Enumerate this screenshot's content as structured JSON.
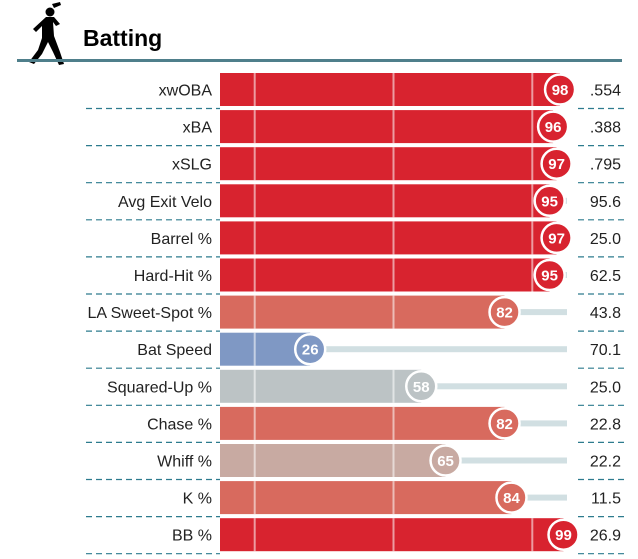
{
  "header": {
    "title": "Batting",
    "icon": "batter-silhouette-icon"
  },
  "chart_data": {
    "type": "bar",
    "orientation": "horizontal",
    "title": "Batting",
    "xlim": [
      0,
      100
    ],
    "grid": true,
    "categories": [
      "xwOBA",
      "xBA",
      "xSLG",
      "Avg Exit Velo",
      "Barrel %",
      "Hard-Hit %",
      "LA Sweet-Spot %",
      "Bat Speed",
      "Squared-Up %",
      "Chase %",
      "Whiff %",
      "K %",
      "BB %"
    ],
    "percentiles": [
      98,
      96,
      97,
      95,
      97,
      95,
      82,
      26,
      58,
      82,
      65,
      84,
      99
    ],
    "stat_values": [
      ".554",
      ".388",
      ".795",
      "95.6",
      "25.0",
      "62.5",
      "43.8",
      "70.1",
      "25.0",
      "22.8",
      "22.2",
      "11.5",
      "26.9"
    ],
    "colors": {
      "elite": "#d8232f",
      "high": "#d86a5e",
      "mid_warm": "#c8aaa2",
      "neutral": "#bcc3c5",
      "low": "#7f98c4",
      "track": "#d1dfe2",
      "dash": "#2d7b8e",
      "rule": "#4f7f8b"
    }
  }
}
